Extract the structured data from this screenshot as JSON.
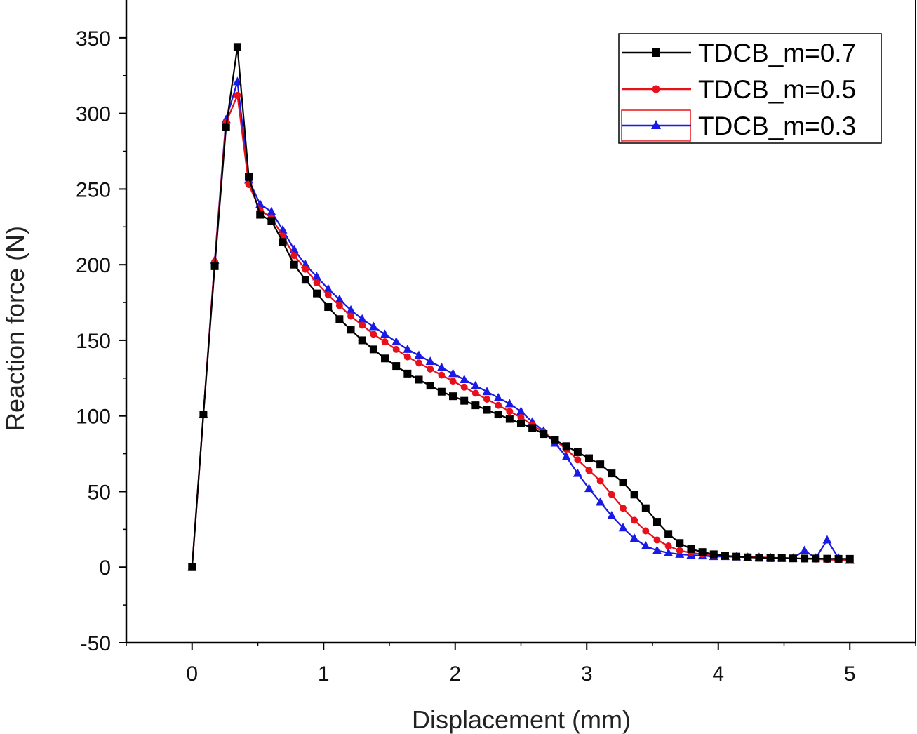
{
  "chart_data": {
    "type": "line",
    "title": "",
    "xlabel": "Displacement (mm)",
    "ylabel": "Reaction force (N)",
    "xlim": [
      -0.5,
      5.5
    ],
    "ylim": [
      -50,
      375
    ],
    "xticks": [
      0,
      1,
      2,
      3,
      4,
      5
    ],
    "yticks": [
      -50,
      0,
      50,
      100,
      150,
      200,
      250,
      300,
      350
    ],
    "xtick_labels": [
      "0",
      "1",
      "2",
      "3",
      "4",
      "5"
    ],
    "ytick_labels": [
      "-50",
      "0",
      "50",
      "100",
      "150",
      "200",
      "250",
      "300",
      "350"
    ],
    "grid": false,
    "legend_position": "top-right",
    "x": [
      0,
      0.0862,
      0.1724,
      0.2586,
      0.3448,
      0.431,
      0.5172,
      0.6034,
      0.6897,
      0.7759,
      0.8621,
      0.9483,
      1.0345,
      1.1207,
      1.2069,
      1.2931,
      1.3793,
      1.4655,
      1.5517,
      1.6379,
      1.7241,
      1.8103,
      1.8966,
      1.9828,
      2.069,
      2.1552,
      2.2414,
      2.3276,
      2.4138,
      2.5,
      2.5862,
      2.6724,
      2.7586,
      2.8448,
      2.931,
      3.0172,
      3.1034,
      3.1897,
      3.2759,
      3.3621,
      3.4483,
      3.5345,
      3.6207,
      3.7069,
      3.7931,
      3.8793,
      3.9655,
      4.0517,
      4.1379,
      4.2241,
      4.3103,
      4.3966,
      4.4828,
      4.569,
      4.6552,
      4.7414,
      4.8276,
      4.9138,
      5.0
    ],
    "series": [
      {
        "name": "TDCB_m=0.7",
        "color": "#000000",
        "marker": "square",
        "values": [
          0,
          101,
          199,
          291,
          344,
          258,
          233,
          229,
          215,
          200,
          190,
          181,
          172,
          164,
          157,
          150,
          144,
          138,
          133,
          128,
          124,
          120,
          116,
          113,
          110,
          107,
          104,
          101,
          98,
          95,
          92,
          88,
          84,
          80,
          76,
          72,
          68,
          62,
          56,
          48,
          39,
          30,
          22,
          16,
          12,
          10,
          8.5,
          7.5,
          7,
          6.5,
          6.2,
          6,
          6,
          5.8,
          5.7,
          5.7,
          5.6,
          5.5,
          5.5
        ]
      },
      {
        "name": "TDCB_m=0.5",
        "color": "#e8101a",
        "marker": "circle",
        "values": [
          0,
          101,
          202,
          294,
          312,
          253,
          236,
          231,
          219,
          206,
          197,
          188,
          180,
          173,
          166,
          160,
          154,
          149,
          144,
          139,
          135,
          131,
          127,
          123,
          119,
          115,
          111,
          107,
          103,
          99,
          94,
          89,
          84,
          78,
          71,
          64,
          57,
          48,
          39,
          31,
          24,
          18,
          14,
          11,
          9.5,
          8.5,
          8,
          7.5,
          7,
          6.8,
          6.5,
          6.2,
          6,
          5.8,
          5.5,
          5.3,
          5,
          4.8,
          4.5
        ]
      },
      {
        "name": "TDCB_m=0.3",
        "color": "#1a1ae6",
        "marker": "triangle",
        "values": [
          0,
          101,
          203,
          296,
          321,
          256,
          240,
          235,
          223,
          210,
          200,
          192,
          184,
          177,
          170,
          164,
          159,
          154,
          149,
          144,
          140,
          136,
          132,
          128,
          124,
          120,
          116,
          112,
          108,
          103,
          96,
          90,
          82,
          73,
          62,
          52,
          43,
          34,
          26,
          19,
          14,
          11,
          9.5,
          8.5,
          8,
          7.5,
          7,
          7,
          6.8,
          6.5,
          6.5,
          6.3,
          6,
          6,
          11,
          6,
          18,
          6,
          4.5
        ]
      }
    ]
  }
}
